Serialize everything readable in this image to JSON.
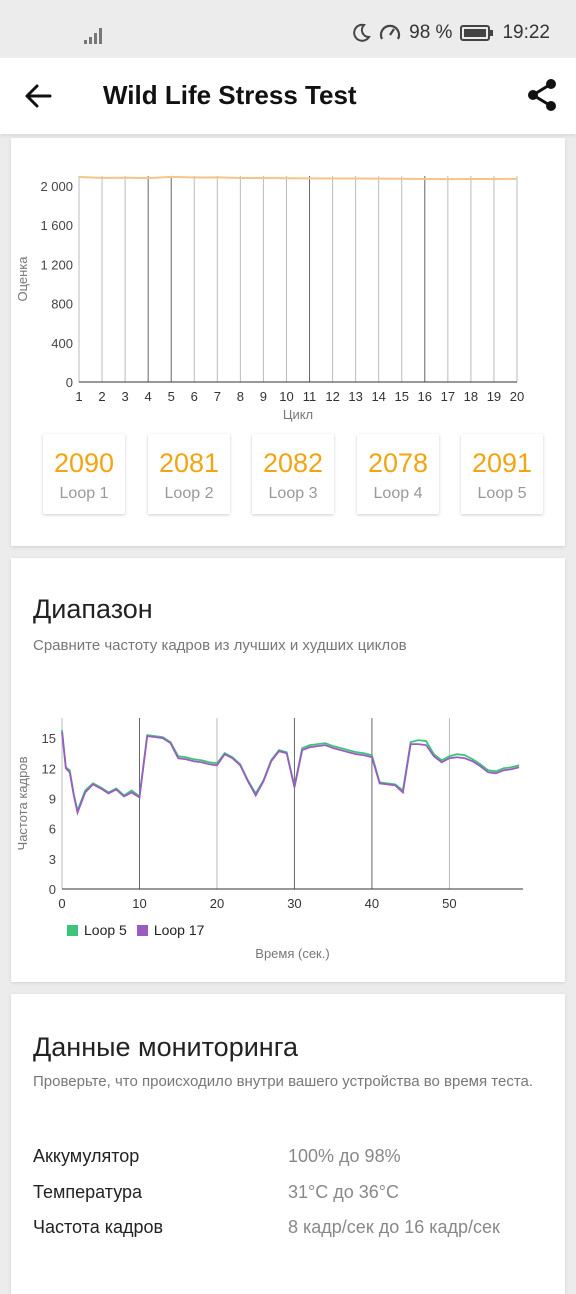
{
  "status": {
    "battery": "98 %",
    "time": "19:22"
  },
  "header": {
    "title": "Wild Life Stress Test",
    "back_icon": "arrow-left-icon",
    "share_icon": "share-icon"
  },
  "colors": {
    "score": "#f2a512",
    "score_line": "#f6c38a",
    "loop5": "#3cc47a",
    "loop17": "#9a5cc0"
  },
  "scores_chart": {
    "ylabel": "Оценка",
    "xlabel": "Цикл",
    "yticks": [
      "0",
      "400",
      "800",
      "1 200",
      "1 600",
      "2 000"
    ],
    "xticks": [
      "1",
      "2",
      "3",
      "4",
      "5",
      "6",
      "7",
      "8",
      "9",
      "10",
      "11",
      "12",
      "13",
      "14",
      "15",
      "16",
      "17",
      "18",
      "19",
      "20"
    ]
  },
  "loops": [
    {
      "value": "2090",
      "label": "Loop 1"
    },
    {
      "value": "2081",
      "label": "Loop 2"
    },
    {
      "value": "2082",
      "label": "Loop 3"
    },
    {
      "value": "2078",
      "label": "Loop 4"
    },
    {
      "value": "2091",
      "label": "Loop 5"
    }
  ],
  "range": {
    "title": "Диапазон",
    "subtitle": "Сравните частоту кадров из лучших и худших циклов",
    "ylabel": "Частота кадров",
    "xlabel": "Время (сек.)",
    "yticks": [
      "0",
      "3",
      "6",
      "9",
      "12",
      "15"
    ],
    "xticks": [
      "0",
      "10",
      "20",
      "30",
      "40",
      "50"
    ],
    "legend": [
      "Loop 5",
      "Loop 17"
    ]
  },
  "monitoring": {
    "title": "Данные мониторинга",
    "subtitle": "Проверьте, что происходило внутри вашего устройства во время теста.",
    "rows": [
      {
        "label": "Аккумулятор",
        "value": "100% до 98%"
      },
      {
        "label": "Температура",
        "value": "31°C до 36°C"
      },
      {
        "label": "Частота кадров",
        "value": "8 кадр/сек до 16 кадр/сек"
      }
    ]
  },
  "chart_data": [
    {
      "type": "line",
      "xlabel": "Цикл",
      "ylabel": "Оценка",
      "x": [
        1,
        2,
        3,
        4,
        5,
        6,
        7,
        8,
        9,
        10,
        11,
        12,
        13,
        14,
        15,
        16,
        17,
        18,
        19,
        20
      ],
      "series": [
        {
          "values": [
            2090,
            2081,
            2082,
            2078,
            2091,
            2085,
            2086,
            2080,
            2079,
            2077,
            2076,
            2075,
            2074,
            2073,
            2072,
            2070,
            2068,
            2069,
            2070,
            2071
          ]
        }
      ],
      "ylim": [
        0,
        2100
      ],
      "xlim": [
        1,
        20
      ]
    },
    {
      "type": "line",
      "xlabel": "Время (сек.)",
      "ylabel": "Частота кадров",
      "x": [
        0,
        0.5,
        1,
        1.5,
        2,
        3,
        4,
        5,
        6,
        7,
        8,
        9,
        10,
        11,
        12,
        13,
        14,
        15,
        16,
        17,
        18,
        19,
        20,
        21,
        22,
        23,
        24,
        25,
        26,
        27,
        28,
        29,
        30,
        31,
        32,
        33,
        34,
        35,
        36,
        37,
        38,
        39,
        40,
        41,
        42,
        43,
        44,
        45,
        46,
        47,
        48,
        49,
        50,
        51,
        52,
        53,
        54,
        55,
        56,
        57,
        58,
        59
      ],
      "series": [
        {
          "name": "Loop 5",
          "values": [
            15.8,
            12.1,
            11.8,
            9.5,
            7.8,
            9.8,
            10.5,
            10.1,
            9.6,
            10.0,
            9.3,
            9.8,
            9.2,
            15.3,
            15.2,
            15.1,
            14.6,
            13.2,
            13.1,
            12.9,
            12.8,
            12.6,
            12.5,
            13.5,
            13.1,
            12.4,
            10.8,
            9.5,
            10.8,
            12.8,
            13.8,
            13.6,
            10.2,
            14.0,
            14.3,
            14.4,
            14.5,
            14.2,
            14.0,
            13.8,
            13.6,
            13.5,
            13.3,
            10.6,
            10.5,
            10.4,
            9.8,
            14.6,
            14.8,
            14.7,
            13.4,
            12.8,
            13.2,
            13.4,
            13.3,
            12.9,
            12.4,
            11.8,
            11.7,
            12.0,
            12.1,
            12.3
          ]
        },
        {
          "name": "Loop 17",
          "values": [
            15.6,
            12.0,
            11.6,
            9.4,
            7.6,
            9.6,
            10.4,
            10.0,
            9.5,
            9.9,
            9.2,
            9.6,
            9.1,
            15.2,
            15.1,
            15.0,
            14.5,
            13.0,
            12.9,
            12.7,
            12.6,
            12.4,
            12.3,
            13.4,
            13.0,
            12.3,
            10.7,
            9.3,
            10.7,
            12.7,
            13.7,
            13.5,
            10.1,
            13.8,
            14.1,
            14.2,
            14.3,
            14.0,
            13.8,
            13.6,
            13.4,
            13.3,
            13.1,
            10.5,
            10.4,
            10.3,
            9.6,
            14.4,
            14.4,
            14.3,
            13.2,
            12.6,
            13.0,
            13.1,
            13.0,
            12.7,
            12.2,
            11.6,
            11.5,
            11.8,
            11.9,
            12.1
          ]
        }
      ],
      "ylim": [
        0,
        17
      ],
      "xlim": [
        0,
        60
      ],
      "legend": "bottom-left"
    }
  ]
}
